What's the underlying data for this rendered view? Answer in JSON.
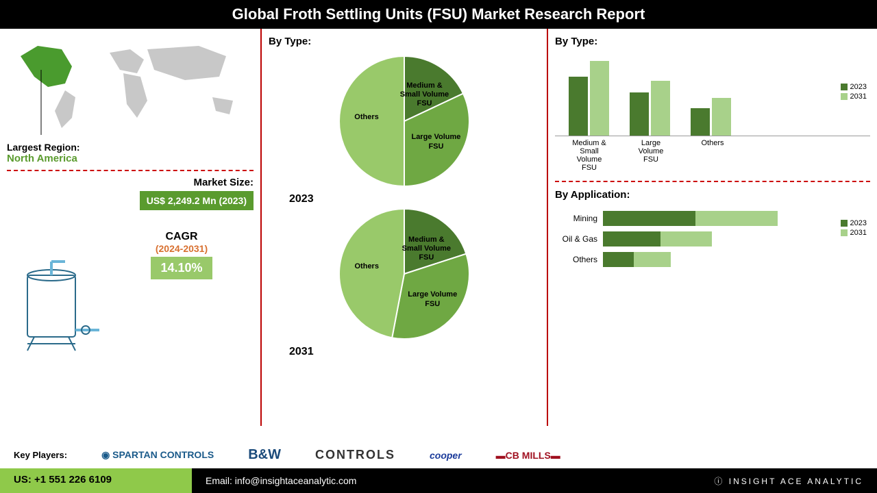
{
  "header_title": "Global Froth Settling Units (FSU) Market Research Report",
  "region": {
    "label": "Largest Region:",
    "value": "North America",
    "highlight_color": "#4a9b2e",
    "map_color": "#c8c8c8"
  },
  "market_size": {
    "label": "Market Size:",
    "value": "US$ 2,249.2 Mn (2023)",
    "box_color": "#5a9b2e"
  },
  "cagr": {
    "label": "CAGR",
    "period": "(2024-2031)",
    "value": "14.10%",
    "box_color": "#99c96a"
  },
  "pie_section_label": "By Type:",
  "pies": [
    {
      "year": "2023",
      "slices": [
        {
          "label": "Medium & Small Volume FSU",
          "pct": 18,
          "color": "#4a7a2e"
        },
        {
          "label": "Large Volume FSU",
          "pct": 32,
          "color": "#6fa843"
        },
        {
          "label": "Others",
          "pct": 50,
          "color": "#99c96a"
        }
      ]
    },
    {
      "year": "2031",
      "slices": [
        {
          "label": "Medium & Small Volume FSU",
          "pct": 20,
          "color": "#4a7a2e"
        },
        {
          "label": "Large Volume FSU",
          "pct": 33,
          "color": "#6fa843"
        },
        {
          "label": "Others",
          "pct": 47,
          "color": "#99c96a"
        }
      ]
    }
  ],
  "bar_chart": {
    "title": "By  Type:",
    "categories": [
      "Medium & Small Volume FSU",
      "Large Volume FSU",
      "Others"
    ],
    "series": [
      {
        "name": "2023",
        "color": "#4a7a2e",
        "values": [
          75,
          55,
          35
        ]
      },
      {
        "name": "2031",
        "color": "#a8d18a",
        "values": [
          95,
          70,
          48
        ]
      }
    ],
    "max": 100
  },
  "hbar_chart": {
    "title": "By Application:",
    "categories": [
      "Mining",
      "Oil & Gas",
      "Others"
    ],
    "series": [
      {
        "name": "2023",
        "color": "#4a7a2e",
        "values": [
          45,
          28,
          15
        ]
      },
      {
        "name": "2031",
        "color": "#a8d18a",
        "values": [
          40,
          25,
          18
        ]
      }
    ],
    "max": 100
  },
  "key_players": {
    "label": "Key Players:",
    "logos": [
      "SPARTAN CONTROLS",
      "B&W",
      "CONTROLS",
      "cooper",
      "CB MILLS"
    ]
  },
  "contact": {
    "phone": "US: +1 551 226 6109",
    "email": "Email: info@insightaceanalytic.com",
    "brand": "INSIGHT ACE ANALYTIC"
  }
}
